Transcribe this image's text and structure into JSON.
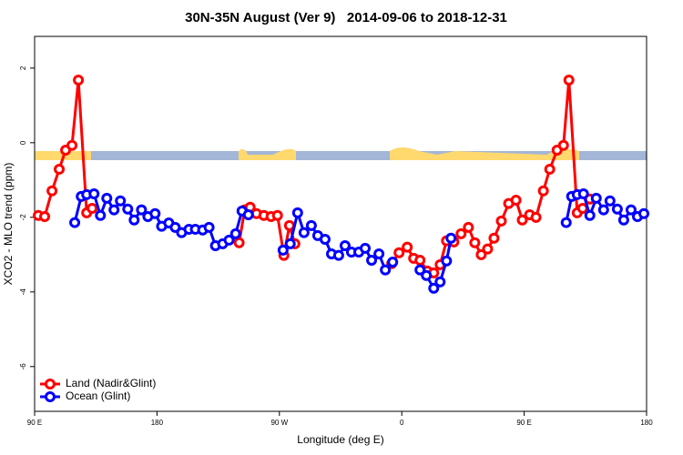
{
  "chart_data": {
    "type": "line",
    "title": "30N-35N August (Ver 9)   2014-09-06 to 2018-12-31",
    "x_label": "Longitude (deg E)",
    "y_label": "XCO2 - MLO trend (ppm)",
    "xlim": [
      90,
      540
    ],
    "ylim": [
      -7.2,
      2.85
    ],
    "xticks": [
      {
        "value": 90,
        "label": "90 E"
      },
      180,
      {
        "value": 270,
        "label": "90 W"
      },
      {
        "value": 360,
        "label": "0"
      },
      {
        "value": 450,
        "label": "90 E"
      },
      {
        "value": 540,
        "label": "180"
      }
    ],
    "yticks": [
      2,
      0,
      -2,
      -4,
      -6
    ],
    "legend": "bottom-left",
    "series": [
      {
        "name": "Land (Nadir&Glint)",
        "color": "#ff0000",
        "x": [
          92.7,
          97.4,
          102.8,
          108.1,
          112.8,
          117.5,
          122.2,
          128.3,
          132.3,
          null,
          240.4,
          244.5,
          248.5,
          253.2,
          258.6,
          263.9,
          268.6,
          273.3,
          277.4,
          281.4,
          null,
          352.6,
          358.0,
          364.0,
          368.7,
          373.4,
          378.8,
          383.5,
          388.2,
          392.9,
          398.3,
          403.6,
          409.0,
          413.7,
          418.4,
          423.1,
          427.8,
          433.2,
          438.6,
          444.0,
          448.6,
          454.0,
          458.7,
          464.1,
          468.8,
          474.2,
          478.9,
          482.9,
          489.0,
          493.0,
          498.3
        ],
        "values": [
          -1.95,
          -1.98,
          -1.29,
          -0.71,
          -0.2,
          -0.07,
          1.68,
          -1.88,
          -1.76,
          null,
          -2.68,
          -1.8,
          -1.73,
          -1.9,
          -1.95,
          -1.98,
          -1.95,
          -3.02,
          -2.22,
          -2.71,
          null,
          -3.24,
          -2.95,
          -2.8,
          -3.1,
          -3.15,
          -3.44,
          -3.49,
          -3.27,
          -2.63,
          -2.66,
          -2.44,
          -2.27,
          -2.68,
          -3.0,
          -2.85,
          -2.56,
          -2.1,
          -1.63,
          -1.54,
          -2.07,
          -1.93,
          -2.0,
          -1.29,
          -0.71,
          -0.2,
          -0.07,
          1.68,
          -1.88,
          -1.76,
          -1.51
        ]
      },
      {
        "name": "Ocean (Glint)",
        "color": "#0000ff",
        "x": [
          119.5,
          124.3,
          128.3,
          133.7,
          138.4,
          143.1,
          148.4,
          153.1,
          158.5,
          163.2,
          168.6,
          173.3,
          178.6,
          183.4,
          188.7,
          193.4,
          198.1,
          203.5,
          208.2,
          213.6,
          218.3,
          223.0,
          228.3,
          233.0,
          237.8,
          242.5,
          247.2,
          null,
          272.7,
          278.0,
          283.4,
          288.1,
          293.5,
          298.2,
          303.6,
          308.3,
          313.6,
          318.3,
          323.0,
          328.4,
          333.1,
          337.8,
          343.2,
          347.9,
          353.3,
          null,
          373.4,
          378.1,
          383.5,
          388.2,
          392.9,
          396.2,
          null,
          480.9,
          484.9,
          489.0,
          493.6,
          498.3,
          503.0,
          508.4,
          513.1,
          518.5,
          523.2,
          528.6,
          533.3,
          538.0
        ],
        "values": [
          -2.14,
          -1.44,
          -1.39,
          -1.37,
          -1.95,
          -1.49,
          -1.8,
          -1.56,
          -1.78,
          -2.07,
          -1.8,
          -1.98,
          -1.9,
          -2.24,
          -2.15,
          -2.27,
          -2.41,
          -2.32,
          -2.32,
          -2.34,
          -2.27,
          -2.76,
          -2.71,
          -2.61,
          -2.44,
          -1.83,
          -1.93,
          null,
          -2.88,
          -2.71,
          -1.88,
          -2.41,
          -2.22,
          -2.49,
          -2.59,
          -2.98,
          -3.02,
          -2.76,
          -2.93,
          -2.93,
          -2.83,
          -3.15,
          -2.98,
          -3.41,
          -3.2,
          null,
          -3.41,
          -3.56,
          -3.9,
          -3.73,
          -3.17,
          -2.56,
          null,
          -2.14,
          -1.44,
          -1.39,
          -1.37,
          -1.95,
          -1.49,
          -1.8,
          -1.56,
          -1.78,
          -2.07,
          -1.8,
          -1.98,
          -1.9
        ]
      }
    ]
  }
}
